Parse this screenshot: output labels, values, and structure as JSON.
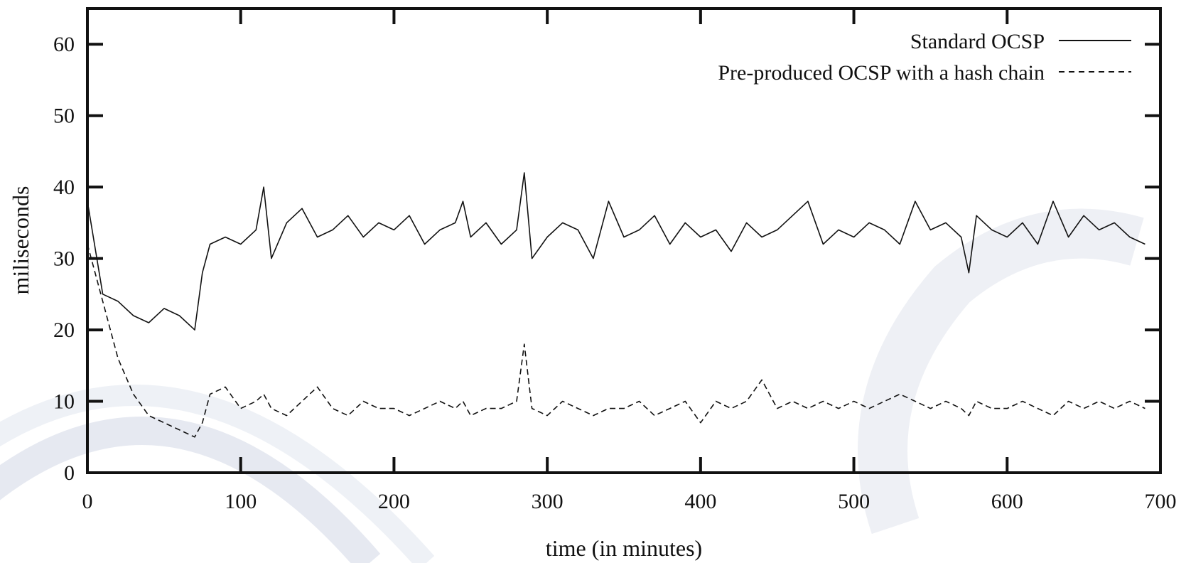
{
  "chart_data": {
    "type": "line",
    "xlabel": "time (in minutes)",
    "ylabel": "miliseconds",
    "xlim": [
      0,
      700
    ],
    "ylim": [
      0,
      65
    ],
    "xticks": [
      0,
      100,
      200,
      300,
      400,
      500,
      600,
      700
    ],
    "yticks": [
      0,
      10,
      20,
      30,
      40,
      50,
      60
    ],
    "grid": false,
    "legend_position": "top-right",
    "x": [
      0,
      10,
      20,
      30,
      40,
      50,
      60,
      70,
      75,
      80,
      90,
      100,
      110,
      115,
      120,
      130,
      140,
      150,
      160,
      170,
      180,
      190,
      200,
      210,
      220,
      230,
      240,
      245,
      250,
      260,
      270,
      280,
      285,
      290,
      300,
      310,
      320,
      330,
      340,
      350,
      360,
      370,
      380,
      390,
      400,
      410,
      420,
      430,
      440,
      450,
      460,
      470,
      480,
      490,
      500,
      510,
      520,
      530,
      540,
      550,
      560,
      570,
      575,
      580,
      590,
      600,
      610,
      620,
      630,
      640,
      650,
      660,
      670,
      680,
      690
    ],
    "series": [
      {
        "name": "Standard OCSP",
        "style": "solid",
        "values": [
          38,
          25,
          24,
          22,
          21,
          23,
          22,
          20,
          28,
          32,
          33,
          32,
          34,
          40,
          30,
          35,
          37,
          33,
          34,
          36,
          33,
          35,
          34,
          36,
          32,
          34,
          35,
          38,
          33,
          35,
          32,
          34,
          42,
          30,
          33,
          35,
          34,
          30,
          38,
          33,
          34,
          36,
          32,
          35,
          33,
          34,
          31,
          35,
          33,
          34,
          36,
          38,
          32,
          34,
          33,
          35,
          34,
          32,
          38,
          34,
          35,
          33,
          28,
          36,
          34,
          33,
          35,
          32,
          38,
          33,
          36,
          34,
          35,
          33,
          32
        ]
      },
      {
        "name": "Pre-produced OCSP with a hash chain",
        "style": "dashed",
        "values": [
          32,
          24,
          16,
          11,
          8,
          7,
          6,
          5,
          7,
          11,
          12,
          9,
          10,
          11,
          9,
          8,
          10,
          12,
          9,
          8,
          10,
          9,
          9,
          8,
          9,
          10,
          9,
          10,
          8,
          9,
          9,
          10,
          18,
          9,
          8,
          10,
          9,
          8,
          9,
          9,
          10,
          8,
          9,
          10,
          7,
          10,
          9,
          10,
          13,
          9,
          10,
          9,
          10,
          9,
          10,
          9,
          10,
          11,
          10,
          9,
          10,
          9,
          8,
          10,
          9,
          9,
          10,
          9,
          8,
          10,
          9,
          10,
          9,
          10,
          9
        ]
      }
    ]
  }
}
